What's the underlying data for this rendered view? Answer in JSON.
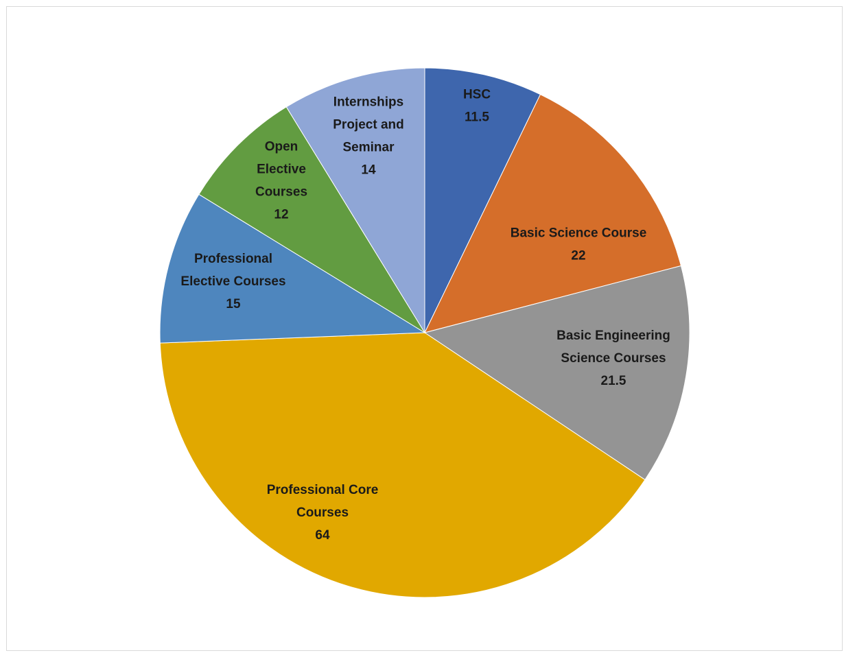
{
  "chart_data": {
    "type": "pie",
    "title": "",
    "start_angle_deg": 0,
    "direction": "clockwise",
    "slices": [
      {
        "lines": [
          "HSC"
        ],
        "value": 11.5,
        "value_label": "11.5",
        "color": "#3e66ad"
      },
      {
        "lines": [
          "Basic Science Course"
        ],
        "value": 22,
        "value_label": "22",
        "color": "#d56e2a"
      },
      {
        "lines": [
          "Basic Engineering",
          "Science Courses"
        ],
        "value": 21.5,
        "value_label": "21.5",
        "color": "#949494"
      },
      {
        "lines": [
          "Professional Core",
          "Courses"
        ],
        "value": 64,
        "value_label": "64",
        "color": "#e1a800"
      },
      {
        "lines": [
          "Professional",
          "Elective Courses"
        ],
        "value": 15,
        "value_label": "15",
        "color": "#4e86be"
      },
      {
        "lines": [
          "Open",
          "Elective",
          "Courses"
        ],
        "value": 12,
        "value_label": "12",
        "color": "#629c41"
      },
      {
        "lines": [
          "Internships",
          "Project and",
          "Seminar"
        ],
        "value": 14,
        "value_label": "14",
        "color": "#8fa6d6"
      }
    ],
    "legend": "none"
  }
}
